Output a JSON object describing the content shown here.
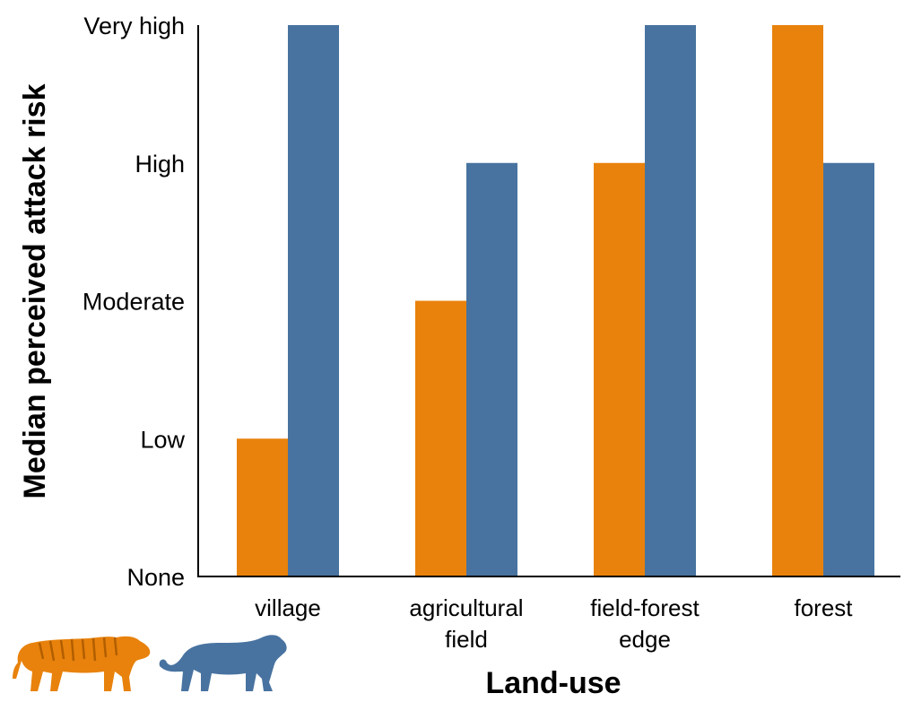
{
  "chart_data": {
    "type": "bar",
    "title": "",
    "xlabel": "Land-use",
    "ylabel": "Median perceived attack risk",
    "y_levels": [
      "None",
      "Low",
      "Moderate",
      "High",
      "Very high"
    ],
    "ylim": [
      0,
      4
    ],
    "categories": [
      {
        "lines": [
          "village"
        ]
      },
      {
        "lines": [
          "agricultural",
          "field"
        ]
      },
      {
        "lines": [
          "field-forest",
          "edge"
        ]
      },
      {
        "lines": [
          "forest"
        ]
      }
    ],
    "series": [
      {
        "values": [
          1,
          2,
          3,
          4
        ],
        "color": "#E8820C",
        "legend_icon": "tiger-icon"
      },
      {
        "values": [
          4,
          3,
          4,
          3
        ],
        "color": "#4873A0",
        "legend_icon": "leopard-icon"
      }
    ],
    "grid": false,
    "legend_placement": "bottom-left"
  }
}
